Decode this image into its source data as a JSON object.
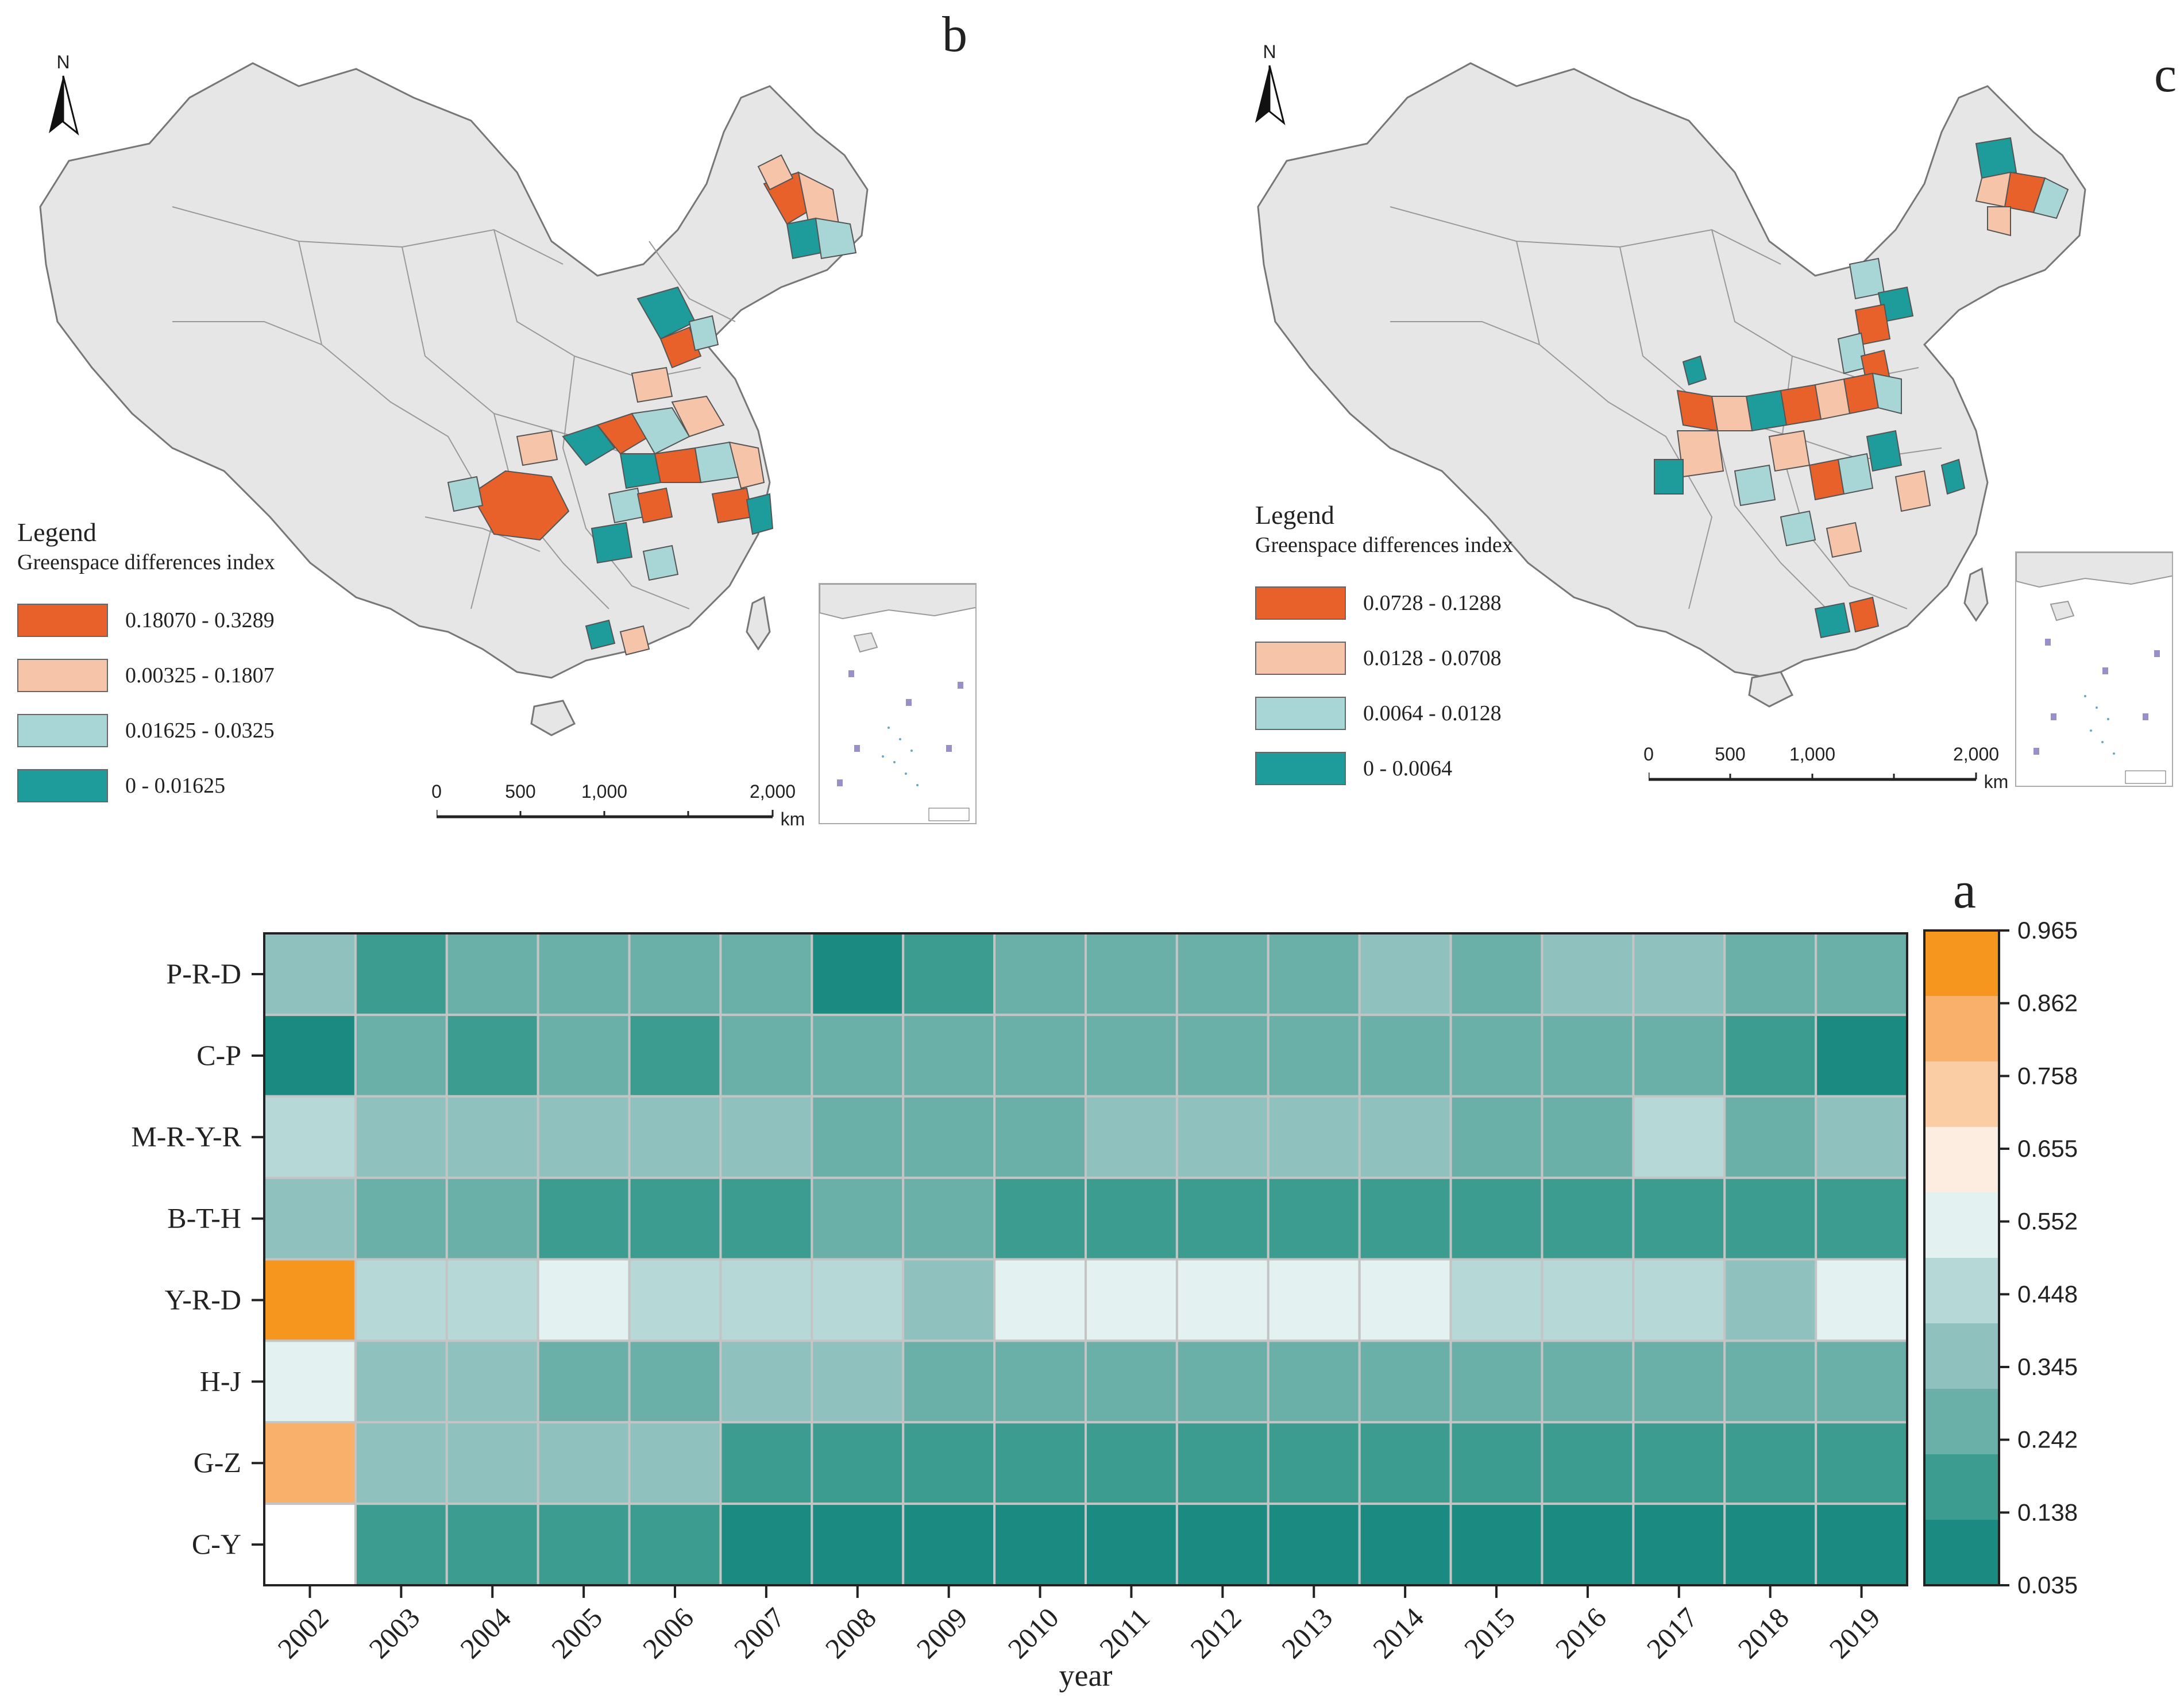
{
  "map_b": {
    "panel_letter": "b",
    "north_label": "N",
    "legend_title": "Legend",
    "legend_subtitle": "Greenspace differences index",
    "classes": [
      {
        "label": "0.18070 - 0.3289",
        "color": "#E8602A"
      },
      {
        "label": "0.00325 - 0.1807",
        "color": "#F6C4A8"
      },
      {
        "label": "0.01625 - 0.0325",
        "color": "#A8D5D5"
      },
      {
        "label": "0 - 0.01625",
        "color": "#1E9B9B"
      }
    ],
    "scale_ticks": [
      "0",
      "500",
      "1,000",
      "2,000"
    ],
    "scale_unit": "km"
  },
  "map_c": {
    "panel_letter": "c",
    "north_label": "N",
    "legend_title": "Legend",
    "legend_subtitle": "Greenspace differences index",
    "classes": [
      {
        "label": "0.0728 - 0.1288",
        "color": "#E8602A"
      },
      {
        "label": "0.0128 - 0.0708",
        "color": "#F6C4A8"
      },
      {
        "label": "0.0064 - 0.0128",
        "color": "#A8D5D5"
      },
      {
        "label": "0 - 0.0064",
        "color": "#1E9B9B"
      }
    ],
    "scale_ticks": [
      "0",
      "500",
      "1,000",
      "2,000"
    ],
    "scale_unit": "km"
  },
  "chart_data": {
    "type": "heatmap",
    "panel_letter": "a",
    "xlabel": "year",
    "ylabel": "",
    "x": [
      "2002",
      "2003",
      "2004",
      "2005",
      "2006",
      "2007",
      "2008",
      "2009",
      "2010",
      "2011",
      "2012",
      "2013",
      "2014",
      "2015",
      "2016",
      "2017",
      "2018",
      "2019"
    ],
    "y": [
      "P-R-D",
      "C-P",
      "M-R-Y-R",
      "B-T-H",
      "Y-R-D",
      "H-J",
      "G-Z",
      "C-Y"
    ],
    "values": [
      [
        0.4,
        0.21,
        0.27,
        0.29,
        0.3,
        0.24,
        0.08,
        0.2,
        0.23,
        0.31,
        0.3,
        0.29,
        0.33,
        0.3,
        0.33,
        0.32,
        0.3,
        0.28
      ],
      [
        0.08,
        0.25,
        0.2,
        0.23,
        0.2,
        0.24,
        0.24,
        0.26,
        0.28,
        0.3,
        0.29,
        0.27,
        0.27,
        0.27,
        0.26,
        0.23,
        0.22,
        0.08
      ],
      [
        0.41,
        0.32,
        0.35,
        0.38,
        0.33,
        0.4,
        0.26,
        0.29,
        0.3,
        0.33,
        0.33,
        0.32,
        0.34,
        0.3,
        0.3,
        0.45,
        0.31,
        0.32
      ],
      [
        0.39,
        0.3,
        0.28,
        0.16,
        0.14,
        0.18,
        0.25,
        0.24,
        0.16,
        0.13,
        0.14,
        0.15,
        0.15,
        0.14,
        0.14,
        0.13,
        0.18,
        0.2
      ],
      [
        0.9,
        0.45,
        0.45,
        0.52,
        0.47,
        0.45,
        0.41,
        0.37,
        0.5,
        0.51,
        0.51,
        0.5,
        0.5,
        0.48,
        0.47,
        0.45,
        0.38,
        0.51
      ],
      [
        0.59,
        0.38,
        0.33,
        0.29,
        0.29,
        0.32,
        0.33,
        0.25,
        0.24,
        0.23,
        0.25,
        0.27,
        0.23,
        0.27,
        0.3,
        0.31,
        0.27,
        0.25
      ],
      [
        0.86,
        0.32,
        0.34,
        0.4,
        0.32,
        0.22,
        0.21,
        0.19,
        0.21,
        0.2,
        0.19,
        0.17,
        0.15,
        0.18,
        0.16,
        0.19,
        0.15,
        0.14
      ],
      [
        null,
        0.16,
        0.16,
        0.16,
        0.15,
        0.12,
        0.09,
        0.1,
        0.09,
        0.09,
        0.09,
        0.1,
        0.1,
        0.09,
        0.1,
        0.1,
        0.09,
        0.1
      ]
    ],
    "colorbar": {
      "ticks": [
        "0.965",
        "0.862",
        "0.758",
        "0.655",
        "0.552",
        "0.448",
        "0.345",
        "0.242",
        "0.138",
        "0.035"
      ],
      "range": [
        0.035,
        0.965
      ],
      "colors": [
        "#1B8A80",
        "#3D9C90",
        "#6AB0A8",
        "#8FC2BE",
        "#B6D8D6",
        "#E3F1F0",
        "#FDEDE0",
        "#FBCDA5",
        "#F9B06A",
        "#F7961F"
      ]
    }
  }
}
